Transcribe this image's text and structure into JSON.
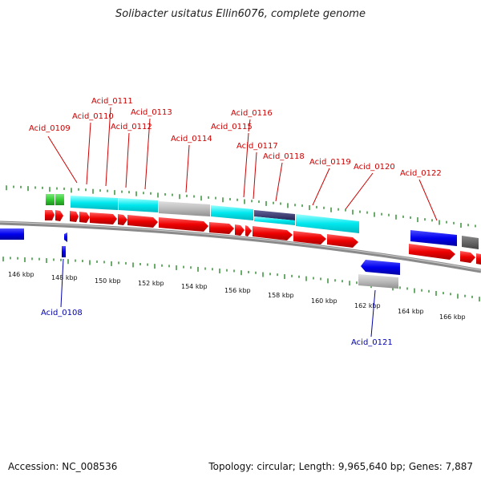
{
  "title": "Solibacter usitatus Ellin6076, complete genome",
  "footer": {
    "accession": "Accession: NC_008536",
    "topology": "Topology: circular; Length: 9,965,640 bp; Genes: 7,887"
  },
  "colors": {
    "forward_gene": "#ff0000",
    "reverse_gene": "#0000ff",
    "cyan_feature": "#00e5ee",
    "gray_feature": "#bbbbbb",
    "green_feature": "#33cc33",
    "dark_feature": "#333366",
    "label_forward": "#cc0000",
    "label_reverse": "#0000aa",
    "tick": "#2a8a2a",
    "backbone": "#777777"
  },
  "axis": {
    "unit": "kbp",
    "labels": [
      "146 kbp",
      "148 kbp",
      "150 kbp",
      "152 kbp",
      "154 kbp",
      "156 kbp",
      "158 kbp",
      "160 kbp",
      "162 kbp",
      "164 kbp",
      "166 kbp"
    ]
  },
  "genes_top": [
    "Acid_0109",
    "Acid_0110",
    "Acid_0111",
    "Acid_0112",
    "Acid_0113",
    "Acid_0114",
    "Acid_0115",
    "Acid_0116",
    "Acid_0117",
    "Acid_0118",
    "Acid_0119",
    "Acid_0120",
    "Acid_0122"
  ],
  "genes_bottom": [
    "Acid_0108",
    "Acid_0121"
  ]
}
